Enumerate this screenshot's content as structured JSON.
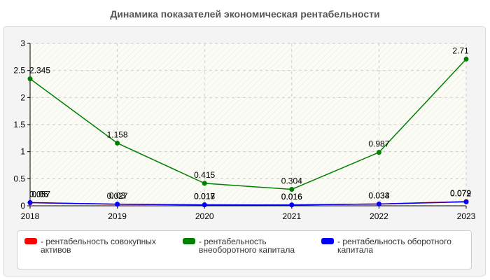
{
  "page": {
    "title": "Динамика показателей экономическая рентабельности"
  },
  "chart_data": {
    "type": "line",
    "x": [
      "2018",
      "2019",
      "2020",
      "2021",
      "2022",
      "2023"
    ],
    "ylim": [
      0,
      3
    ],
    "yticks": [
      "0",
      "0.5",
      "1",
      "1.5",
      "2",
      "2.5",
      "3"
    ],
    "grid": true,
    "legend_position": "bottom",
    "series": [
      {
        "name": "- рентабельность совокупных активов",
        "color": "#ff0000",
        "values": [
          0.057,
          0.027,
          0.017,
          0.016,
          0.034,
          0.079
        ],
        "labels": [
          "0.057",
          "0.027",
          "0.017",
          "0.016",
          "0.034",
          "0.079"
        ]
      },
      {
        "name": "- рентабельность внеоборотного капитала",
        "color": "#008000",
        "values": [
          2.345,
          1.158,
          0.415,
          0.304,
          0.987,
          2.71
        ],
        "labels": [
          "2.345",
          "1.158",
          "0.415",
          "0.304",
          "0.987",
          "2.71"
        ]
      },
      {
        "name": "- рентабельность оборотного капитала",
        "color": "#0000ff",
        "values": [
          0.06,
          0.03,
          0.018,
          0.016,
          0.033,
          0.072
        ],
        "labels": [
          "0.06",
          "0.03",
          "0.018",
          "0.016",
          "0.033",
          "0.072"
        ]
      }
    ]
  }
}
